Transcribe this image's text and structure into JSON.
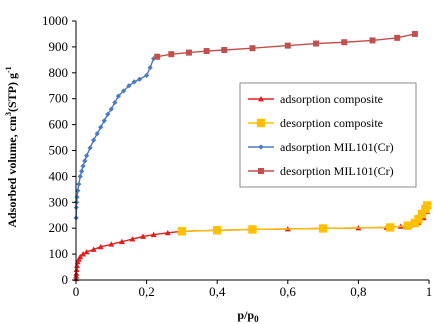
{
  "chart_data": {
    "type": "line",
    "xlabel": "p/p",
    "xlabel_sub": "0",
    "ylabel": "Adsorbed volume, cm",
    "ylabel_sup1": "3",
    "ylabel_mid": "(STP) g",
    "ylabel_sup2": "-1",
    "xlim": [
      0,
      1
    ],
    "ylim": [
      0,
      1000
    ],
    "x_ticks": [
      {
        "value": 0,
        "label": "0"
      },
      {
        "value": 0.2,
        "label": "0,2"
      },
      {
        "value": 0.4,
        "label": "0,4"
      },
      {
        "value": 0.6,
        "label": "0,6"
      },
      {
        "value": 0.8,
        "label": "0,8"
      },
      {
        "value": 1,
        "label": "1"
      }
    ],
    "y_ticks": [
      {
        "value": 0,
        "label": "0"
      },
      {
        "value": 100,
        "label": "100"
      },
      {
        "value": 200,
        "label": "200"
      },
      {
        "value": 300,
        "label": "300"
      },
      {
        "value": 400,
        "label": "400"
      },
      {
        "value": 500,
        "label": "500"
      },
      {
        "value": 600,
        "label": "600"
      },
      {
        "value": 700,
        "label": "700"
      },
      {
        "value": 800,
        "label": "800"
      },
      {
        "value": 900,
        "label": "900"
      },
      {
        "value": 1000,
        "label": "1000"
      }
    ],
    "grid": false,
    "legend_position": "right-middle",
    "series": [
      {
        "name": "adsorption MIL101(Cr)",
        "color": "#4a7bc4",
        "marker": "diamond",
        "x": [
          0.0005,
          0.001,
          0.002,
          0.003,
          0.005,
          0.008,
          0.012,
          0.016,
          0.02,
          0.025,
          0.03,
          0.04,
          0.05,
          0.06,
          0.07,
          0.08,
          0.09,
          0.1,
          0.11,
          0.12,
          0.135,
          0.15,
          0.165,
          0.18,
          0.2,
          0.21,
          0.22,
          0.23
        ],
        "y": [
          240,
          280,
          300,
          320,
          345,
          370,
          400,
          420,
          440,
          460,
          480,
          510,
          540,
          565,
          590,
          615,
          640,
          660,
          685,
          710,
          730,
          750,
          765,
          775,
          790,
          820,
          855,
          862
        ]
      },
      {
        "name": "desorption MIL101(Cr)",
        "color": "#c0504d",
        "marker": "square",
        "x": [
          0.23,
          0.27,
          0.32,
          0.37,
          0.42,
          0.5,
          0.6,
          0.68,
          0.76,
          0.84,
          0.91,
          0.96
        ],
        "y": [
          862,
          872,
          878,
          884,
          888,
          895,
          905,
          913,
          918,
          925,
          935,
          950
        ]
      },
      {
        "name": "adsorption composite",
        "color": "#e02020",
        "marker": "triangle",
        "x": [
          0.0002,
          0.0005,
          0.001,
          0.002,
          0.003,
          0.005,
          0.008,
          0.012,
          0.02,
          0.03,
          0.05,
          0.07,
          0.1,
          0.13,
          0.16,
          0.19,
          0.22,
          0.26,
          0.3,
          0.4,
          0.5,
          0.6,
          0.7,
          0.8,
          0.88,
          0.92,
          0.95,
          0.97,
          0.985,
          0.995
        ],
        "y": [
          5,
          15,
          25,
          40,
          55,
          70,
          80,
          90,
          100,
          108,
          118,
          128,
          138,
          148,
          158,
          168,
          175,
          182,
          188,
          192,
          195,
          197,
          199,
          201,
          203,
          207,
          212,
          222,
          240,
          265
        ]
      },
      {
        "name": "desorption composite",
        "color": "#ffc000",
        "marker": "square",
        "x": [
          0.3,
          0.4,
          0.5,
          0.7,
          0.89,
          0.94,
          0.96,
          0.97,
          0.98,
          0.99,
          0.995
        ],
        "y": [
          188,
          192,
          195,
          199,
          203,
          210,
          220,
          235,
          255,
          275,
          288
        ]
      }
    ],
    "legend_order": [
      2,
      3,
      0,
      1
    ]
  }
}
